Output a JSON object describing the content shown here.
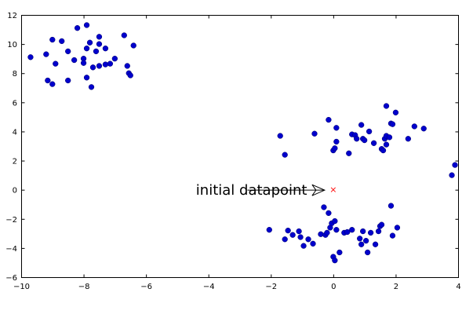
{
  "chart_data": {
    "type": "scatter",
    "xlim": [
      -10,
      4
    ],
    "ylim": [
      -6,
      12
    ],
    "x_ticks": [
      -10,
      -8,
      -6,
      -4,
      -2,
      0,
      2,
      4
    ],
    "y_ticks": [
      -6,
      -4,
      -2,
      0,
      2,
      4,
      6,
      8,
      10,
      12
    ],
    "grid": false,
    "series": [
      {
        "marker": "circle",
        "color": "#0000cc",
        "points": [
          [
            -9.7,
            9.1
          ],
          [
            -9.2,
            9.3
          ],
          [
            -9.15,
            7.5
          ],
          [
            -9.0,
            10.3
          ],
          [
            -9.0,
            7.25
          ],
          [
            -8.9,
            8.65
          ],
          [
            -8.7,
            10.2
          ],
          [
            -8.5,
            9.5
          ],
          [
            -8.5,
            7.5
          ],
          [
            -8.3,
            8.9
          ],
          [
            -8.2,
            11.1
          ],
          [
            -8.0,
            9.0
          ],
          [
            -8.0,
            8.7
          ],
          [
            -7.9,
            11.3
          ],
          [
            -7.9,
            9.7
          ],
          [
            -7.9,
            7.7
          ],
          [
            -7.8,
            10.1
          ],
          [
            -7.75,
            7.05
          ],
          [
            -7.7,
            8.4
          ],
          [
            -7.6,
            9.5
          ],
          [
            -7.5,
            10.5
          ],
          [
            -7.5,
            10.0
          ],
          [
            -7.5,
            8.5
          ],
          [
            -7.3,
            9.7
          ],
          [
            -7.3,
            8.6
          ],
          [
            -7.15,
            8.65
          ],
          [
            -7.0,
            9.0
          ],
          [
            -6.7,
            10.6
          ],
          [
            -6.6,
            8.5
          ],
          [
            -6.55,
            8.0
          ],
          [
            -6.5,
            7.85
          ],
          [
            -6.4,
            9.9
          ],
          [
            -1.7,
            3.7
          ],
          [
            -1.55,
            2.4
          ],
          [
            -0.6,
            3.85
          ],
          [
            -0.15,
            4.8
          ],
          [
            0.0,
            2.7
          ],
          [
            0.05,
            2.85
          ],
          [
            0.1,
            3.3
          ],
          [
            0.1,
            4.25
          ],
          [
            0.5,
            2.5
          ],
          [
            0.6,
            3.8
          ],
          [
            0.7,
            3.75
          ],
          [
            0.75,
            3.5
          ],
          [
            0.9,
            4.45
          ],
          [
            0.95,
            3.5
          ],
          [
            1.0,
            3.4
          ],
          [
            1.15,
            4.0
          ],
          [
            1.3,
            3.2
          ],
          [
            1.55,
            2.8
          ],
          [
            1.6,
            2.7
          ],
          [
            1.65,
            3.5
          ],
          [
            1.7,
            3.7
          ],
          [
            1.7,
            3.1
          ],
          [
            1.7,
            5.75
          ],
          [
            1.8,
            3.6
          ],
          [
            1.85,
            4.55
          ],
          [
            1.9,
            4.5
          ],
          [
            2.0,
            5.3
          ],
          [
            2.4,
            3.5
          ],
          [
            2.6,
            4.35
          ],
          [
            2.9,
            4.2
          ],
          [
            3.8,
            1.0
          ],
          [
            3.9,
            1.7
          ],
          [
            -2.05,
            -2.75
          ],
          [
            -1.55,
            -3.4
          ],
          [
            -1.45,
            -2.8
          ],
          [
            -1.3,
            -3.1
          ],
          [
            -1.1,
            -2.85
          ],
          [
            -1.05,
            -3.25
          ],
          [
            -0.95,
            -3.85
          ],
          [
            -0.8,
            -3.4
          ],
          [
            -0.65,
            -3.7
          ],
          [
            -0.4,
            -3.05
          ],
          [
            -0.3,
            -1.2
          ],
          [
            -0.25,
            -3.1
          ],
          [
            -0.2,
            -2.95
          ],
          [
            -0.15,
            -1.6
          ],
          [
            -0.1,
            -2.6
          ],
          [
            -0.05,
            -2.3
          ],
          [
            0.0,
            -4.6
          ],
          [
            0.05,
            -2.15
          ],
          [
            0.05,
            -4.85
          ],
          [
            0.1,
            -2.75
          ],
          [
            0.2,
            -4.3
          ],
          [
            0.35,
            -2.95
          ],
          [
            0.45,
            -2.9
          ],
          [
            0.6,
            -2.75
          ],
          [
            0.85,
            -3.35
          ],
          [
            0.9,
            -3.75
          ],
          [
            0.95,
            -2.85
          ],
          [
            1.05,
            -3.5
          ],
          [
            1.1,
            -4.3
          ],
          [
            1.2,
            -2.95
          ],
          [
            1.35,
            -3.75
          ],
          [
            1.45,
            -2.85
          ],
          [
            1.5,
            -2.5
          ],
          [
            1.55,
            -2.4
          ],
          [
            1.85,
            -1.1
          ],
          [
            1.9,
            -3.15
          ],
          [
            2.05,
            -2.6
          ]
        ]
      },
      {
        "marker": "x",
        "color": "#ff0000",
        "points": [
          [
            0,
            0
          ]
        ]
      }
    ],
    "annotation": {
      "text": "initial datapoint",
      "text_x": -4.4,
      "arrow_start_x": -2.75,
      "point": [
        0,
        0
      ]
    }
  }
}
